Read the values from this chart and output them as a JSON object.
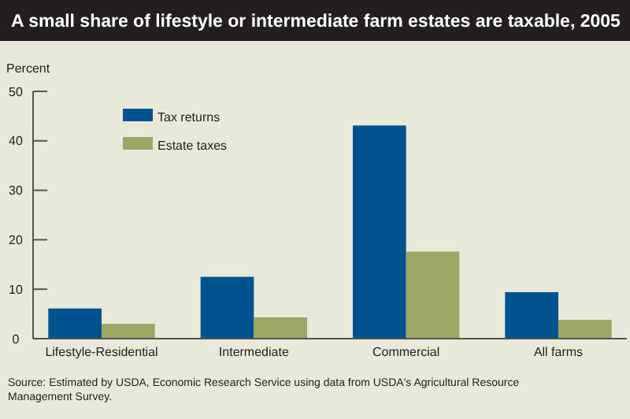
{
  "chart_data": {
    "type": "bar",
    "title": "A small share of lifestyle or intermediate farm estates are taxable, 2005",
    "ylabel": "Percent",
    "categories": [
      "Lifestyle-Residential",
      "Intermediate",
      "Commercial",
      "All farms"
    ],
    "series": [
      {
        "name": "Tax returns",
        "color": "#00538f",
        "values": [
          6.1,
          12.5,
          43.1,
          9.4
        ]
      },
      {
        "name": "Estate taxes",
        "color": "#9ca766",
        "values": [
          3.0,
          4.3,
          17.6,
          3.8
        ]
      }
    ],
    "ylim": [
      0,
      50
    ],
    "yticks": [
      0,
      10,
      20,
      30,
      40,
      50
    ],
    "legend": "top left",
    "grid": false,
    "annotations": [
      "Source:  Estimated by USDA, Economic Research Service using data from USDA's Agricultural Resource Management Survey."
    ]
  }
}
